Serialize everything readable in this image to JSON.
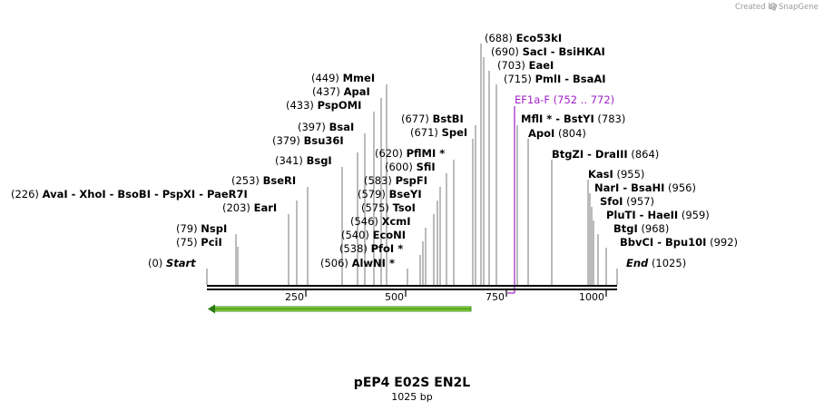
{
  "credit": {
    "prefix": "Created by",
    "brand": "SnapGene"
  },
  "sequence": {
    "name": "pEP4 E02S EN2L",
    "length_label": "1025 bp"
  },
  "axis": {
    "ticks": [
      "250",
      "500",
      "750",
      "1000"
    ]
  },
  "colors": {
    "backbone": "#000000",
    "primer": "#a020c8",
    "feature_fill": "#8fdc3c",
    "feature_stroke": "#2a7a12"
  },
  "site_labels": [
    {
      "pos": "(0)",
      "names": [
        "Start"
      ],
      "style": "italic"
    },
    {
      "pos": "(75)",
      "names": [
        "PciI"
      ]
    },
    {
      "pos": "(79)",
      "names": [
        "NspI"
      ]
    },
    {
      "pos": "(203)",
      "names": [
        "EarI"
      ]
    },
    {
      "pos": "(226)",
      "names": [
        "AvaI",
        "XhoI",
        "BsoBI",
        "PspXI",
        "PaeR7I"
      ]
    },
    {
      "pos": "(253)",
      "names": [
        "BseRI"
      ]
    },
    {
      "pos": "(341)",
      "names": [
        "BsgI"
      ]
    },
    {
      "pos": "(379)",
      "names": [
        "Bsu36I"
      ]
    },
    {
      "pos": "(397)",
      "names": [
        "BsaI"
      ]
    },
    {
      "pos": "(433)",
      "names": [
        "PspOMI"
      ]
    },
    {
      "pos": "(437)",
      "names": [
        "ApaI"
      ]
    },
    {
      "pos": "(449)",
      "names": [
        "MmeI"
      ]
    },
    {
      "pos": "(506)",
      "names": [
        "AlwNI *"
      ]
    },
    {
      "pos": "(538)",
      "names": [
        "PfoI *"
      ]
    },
    {
      "pos": "(540)",
      "names": [
        "EcoNI"
      ]
    },
    {
      "pos": "(546)",
      "names": [
        "XcmI"
      ]
    },
    {
      "pos": "(575)",
      "names": [
        "TsoI"
      ]
    },
    {
      "pos": "(579)",
      "names": [
        "BseYI"
      ]
    },
    {
      "pos": "(583)",
      "names": [
        "PspFI"
      ]
    },
    {
      "pos": "(600)",
      "names": [
        "SfiI"
      ]
    },
    {
      "pos": "(620)",
      "names": [
        "PflMI *"
      ]
    },
    {
      "pos": "(671)",
      "names": [
        "SpeI"
      ]
    },
    {
      "pos": "(677)",
      "names": [
        "BstBI"
      ]
    },
    {
      "pos": "(688)",
      "names": [
        "Eco53kI"
      ]
    },
    {
      "pos": "(690)",
      "names": [
        "SacI",
        "BsiHKAI"
      ]
    },
    {
      "pos": "(703)",
      "names": [
        "EaeI"
      ]
    },
    {
      "pos": "(715)",
      "names": [
        "PmlI",
        "BsaAI"
      ]
    },
    {
      "pos": "(752 .. 772)",
      "names": [
        "EF1a-F"
      ],
      "style": "primer"
    },
    {
      "pos": "(783)",
      "names": [
        "MflI *",
        "BstYI"
      ]
    },
    {
      "pos": "(804)",
      "names": [
        "ApoI"
      ]
    },
    {
      "pos": "(864)",
      "names": [
        "BtgZI",
        "DraIII"
      ]
    },
    {
      "pos": "(955)",
      "names": [
        "KasI"
      ]
    },
    {
      "pos": "(956)",
      "names": [
        "NarI",
        "BsaHI"
      ]
    },
    {
      "pos": "(957)",
      "names": [
        "SfoI"
      ]
    },
    {
      "pos": "(959)",
      "names": [
        "PluTI",
        "HaeII"
      ]
    },
    {
      "pos": "(968)",
      "names": [
        "BtgI"
      ]
    },
    {
      "pos": "(992)",
      "names": [
        "BbvCI",
        "Bpu10I"
      ]
    },
    {
      "pos": "(1025)",
      "names": [
        "End"
      ],
      "style": "italic"
    }
  ]
}
